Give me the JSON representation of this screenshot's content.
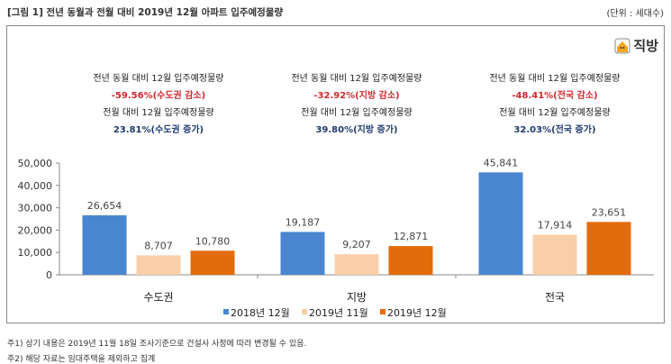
{
  "header": {
    "title": "[그림 1] 전년 동월과 전월 대비 2019년 12월 아파트 입주예정물량",
    "unit": "(단위 : 세대수)"
  },
  "logo": {
    "text": "직방",
    "icon": "house-icon",
    "color": "#f5a623"
  },
  "annotations": [
    {
      "yoy_label": "전년 동월 대비 12월 입주예정물량",
      "yoy_value": "-59.56%(수도권 감소)",
      "mom_label": "전월 대비 12월 입주예정물량",
      "mom_value": "23.81%(수도권 증가)"
    },
    {
      "yoy_label": "전년 동월 대비 12월 입주예정물량",
      "yoy_value": "-32.92%(지방 감소)",
      "mom_label": "전월 대비 12월 입주예정물량",
      "mom_value": "39.80%(지방 증가)"
    },
    {
      "yoy_label": "전년 동월 대비 12월 입주예정물량",
      "yoy_value": "-48.41%(전국 감소)",
      "mom_label": "전월 대비 12월 입주예정물량",
      "mom_value": "32.03%(전국 증가)"
    }
  ],
  "chart_data": {
    "type": "bar",
    "categories": [
      "수도권",
      "지방",
      "전국"
    ],
    "series": [
      {
        "name": "2018년 12월",
        "values": [
          26654,
          19187,
          45841
        ],
        "color": "#4a86d0"
      },
      {
        "name": "2019년 11월",
        "values": [
          8707,
          9207,
          17914
        ],
        "color": "#f9cfaa"
      },
      {
        "name": "2019년 12월",
        "values": [
          10780,
          12871,
          23651
        ],
        "color": "#e36c0a"
      }
    ],
    "value_labels": [
      [
        "26,654",
        "19,187",
        "45,841"
      ],
      [
        "8,707",
        "9,207",
        "17,914"
      ],
      [
        "10,780",
        "12,871",
        "23,651"
      ]
    ],
    "ylim": [
      0,
      50000
    ],
    "yticks": [
      "0",
      "10,000",
      "20,000",
      "30,000",
      "40,000",
      "50,000"
    ],
    "grid": false,
    "legend": "bottom"
  },
  "notes": [
    "주1) 상기 내용은 2019년 11월 18일 조사기준으로 건설사 사정에 따라 변경될 수 있음.",
    "주2) 해당 자료는 임대주택을 제외하고 집계"
  ]
}
